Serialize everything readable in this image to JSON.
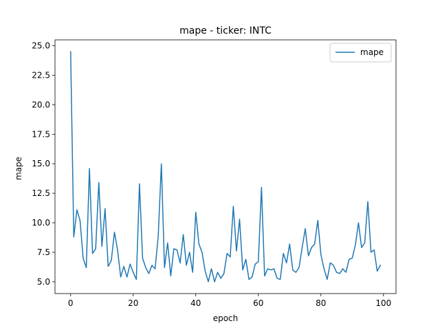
{
  "chart_data": {
    "type": "line",
    "title": "mape - ticker: INTC",
    "xlabel": "epoch",
    "ylabel": "mape",
    "xlim": [
      -5,
      104
    ],
    "ylim": [
      4.0,
      25.5
    ],
    "xticks": [
      0,
      20,
      40,
      60,
      80,
      100
    ],
    "yticks": [
      5.0,
      7.5,
      10.0,
      12.5,
      15.0,
      17.5,
      20.0,
      22.5,
      25.0
    ],
    "ytick_labels": [
      "5.0",
      "7.5",
      "10.0",
      "12.5",
      "15.0",
      "17.5",
      "20.0",
      "22.5",
      "25.0"
    ],
    "grid": false,
    "legend_position": "top-right",
    "series": [
      {
        "name": "mape",
        "color": "#1f77b4",
        "x": [
          0,
          1,
          2,
          3,
          4,
          5,
          6,
          7,
          8,
          9,
          10,
          11,
          12,
          13,
          14,
          15,
          16,
          17,
          18,
          19,
          20,
          21,
          22,
          23,
          24,
          25,
          26,
          27,
          28,
          29,
          30,
          31,
          32,
          33,
          34,
          35,
          36,
          37,
          38,
          39,
          40,
          41,
          42,
          43,
          44,
          45,
          46,
          47,
          48,
          49,
          50,
          51,
          52,
          53,
          54,
          55,
          56,
          57,
          58,
          59,
          60,
          61,
          62,
          63,
          64,
          65,
          66,
          67,
          68,
          69,
          70,
          71,
          72,
          73,
          74,
          75,
          76,
          77,
          78,
          79,
          80,
          81,
          82,
          83,
          84,
          85,
          86,
          87,
          88,
          89,
          90,
          91,
          92,
          93,
          94,
          95,
          96,
          97,
          98,
          99
        ],
        "values": [
          24.5,
          8.8,
          11.1,
          10.2,
          7.0,
          6.2,
          14.6,
          7.4,
          7.8,
          13.4,
          8.0,
          11.2,
          6.3,
          6.8,
          9.2,
          7.7,
          5.4,
          6.3,
          5.4,
          6.5,
          5.8,
          5.2,
          13.3,
          7.0,
          6.2,
          5.7,
          6.4,
          6.1,
          8.9,
          15.0,
          6.2,
          8.3,
          5.5,
          7.8,
          7.7,
          6.6,
          9.0,
          6.4,
          7.5,
          5.8,
          10.9,
          8.2,
          7.5,
          5.9,
          5.0,
          6.1,
          5.0,
          5.8,
          5.3,
          5.7,
          7.4,
          7.1,
          11.4,
          7.6,
          10.3,
          6.0,
          6.9,
          5.2,
          5.4,
          6.5,
          6.7,
          13.0,
          5.5,
          6.1,
          6.0,
          6.1,
          5.3,
          5.2,
          7.4,
          6.6,
          8.2,
          6.0,
          5.8,
          6.2,
          7.9,
          9.5,
          7.2,
          7.9,
          8.2,
          10.2,
          7.3,
          6.1,
          5.2,
          6.6,
          6.4,
          5.8,
          5.7,
          6.1,
          5.8,
          6.9,
          7.0,
          8.1,
          10.0,
          7.9,
          8.3,
          11.8,
          7.5,
          7.7,
          5.9,
          6.4
        ]
      }
    ]
  }
}
